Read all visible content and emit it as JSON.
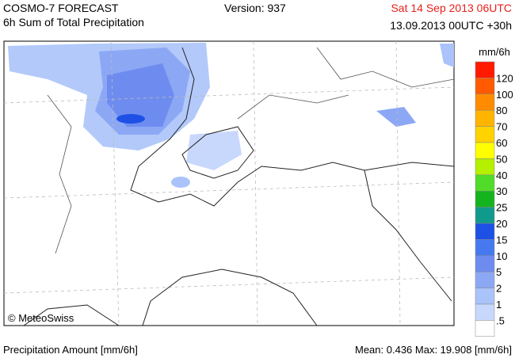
{
  "header": {
    "model": "COSMO-7 FORECAST",
    "field": "6h Sum of Total Precipitation",
    "version": "Version: 937",
    "valid_time": "Sat 14 Sep 2013 06UTC",
    "run": "13.09.2013 00UTC +30h"
  },
  "legend": {
    "unit": "mm/6h",
    "boxes": [
      "#ff1a00",
      "#ff5a00",
      "#ff8c00",
      "#ffb400",
      "#ffd200",
      "#ffff00",
      "#b4f000",
      "#50dc28",
      "#14b41e",
      "#109a8c",
      "#1e50e6",
      "#4678f0",
      "#6e8cf0",
      "#8ca8f5",
      "#aac3fa",
      "#c8d7fc",
      "#ffffff"
    ],
    "labels": [
      "120",
      "100",
      "80",
      "70",
      "60",
      "50",
      "40",
      "30",
      "25",
      "20",
      "15",
      "10",
      "5",
      "2",
      "1",
      ".5"
    ]
  },
  "map": {
    "copyright": "© MeteoSwiss"
  },
  "footer": {
    "quantity": "Precipitation Amount [mm/6h]",
    "stats": "Mean:  0.436 Max: 19.908 [mm/6h]"
  }
}
